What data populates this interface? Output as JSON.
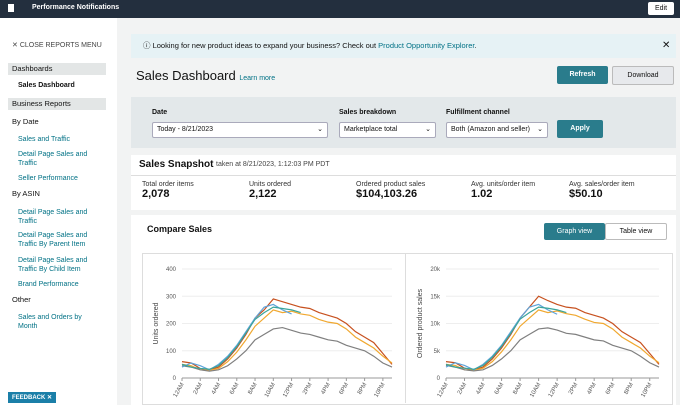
{
  "top_bar": {
    "title": "Performance Notifications",
    "edit": "Edit"
  },
  "sidebar": {
    "close": "CLOSE REPORTS MENU",
    "items": [
      "Dashboards",
      "Sales Dashboard",
      "Business Reports",
      "By Date",
      "Sales and Traffic",
      "Detail Page Sales and Traffic",
      "Seller Performance",
      "By ASIN",
      "Detail Page Sales and Traffic",
      "Detail Page Sales and Traffic By Parent Item",
      "Detail Page Sales and Traffic By Child Item",
      "Brand Performance",
      "Other",
      "Sales and Orders by Month"
    ],
    "feedback": "FEEDBACK"
  },
  "banner": {
    "text": "Looking for new product ideas to expand your business? Check out",
    "link": "Product Opportunity Explorer",
    "end": "."
  },
  "header": {
    "title": "Sales Dashboard",
    "learn_more": "Learn more",
    "refresh": "Refresh",
    "download": "Download"
  },
  "filters": [
    {
      "label": "Date",
      "value": "Today - 8/21/2023"
    },
    {
      "label": "Sales breakdown",
      "value": "Marketplace total"
    },
    {
      "label": "Fulfillment channel",
      "value": "Both (Amazon and seller)"
    }
  ],
  "apply": "Apply",
  "snapshot": {
    "title": "Sales Snapshot",
    "taken": "taken at 8/21/2023, 1:12:03 PM PDT",
    "metrics": [
      {
        "label": "Total order items",
        "value": "2,078"
      },
      {
        "label": "Units ordered",
        "value": "2,122"
      },
      {
        "label": "Ordered product sales",
        "value": "$104,103.26"
      },
      {
        "label": "Avg. units/order item",
        "value": "1.02"
      },
      {
        "label": "Avg. sales/order item",
        "value": "$50.10"
      }
    ]
  },
  "compare": {
    "title": "Compare Sales",
    "graph_view": "Graph view",
    "table_view": "Table view"
  },
  "chart_data": [
    {
      "type": "line",
      "y_label": "Units ordered",
      "categories": [
        "12AM",
        null,
        "2AM",
        null,
        "4AM",
        null,
        "6AM",
        null,
        "8AM",
        null,
        "10AM",
        null,
        "12PM",
        null,
        "2PM",
        null,
        "4PM",
        null,
        "6PM",
        null,
        "8PM",
        null,
        "10PM",
        null
      ],
      "ylim": [
        0,
        400
      ],
      "yticks": [
        0,
        100,
        200,
        300,
        400
      ],
      "grid": true,
      "series": [
        {
          "color": "#c7511f",
          "values": [
            60,
            55,
            35,
            30,
            40,
            70,
            110,
            160,
            220,
            250,
            290,
            280,
            270,
            260,
            255,
            240,
            230,
            220,
            200,
            170,
            150,
            130,
            90,
            50
          ]
        },
        {
          "color": "#f0a830",
          "values": [
            50,
            45,
            30,
            28,
            35,
            60,
            95,
            140,
            190,
            220,
            250,
            240,
            245,
            235,
            230,
            215,
            205,
            200,
            180,
            150,
            130,
            110,
            80,
            55
          ]
        },
        {
          "color": "#7f7f7f",
          "values": [
            45,
            40,
            30,
            25,
            30,
            45,
            70,
            100,
            140,
            160,
            180,
            185,
            175,
            165,
            160,
            150,
            140,
            135,
            120,
            110,
            100,
            80,
            55,
            40
          ]
        },
        {
          "color": "#5ea3d9",
          "values": [
            40,
            55,
            45,
            30,
            50,
            80,
            120,
            170,
            220,
            260,
            270,
            250,
            235,
            null,
            null,
            null,
            null,
            null,
            null,
            null,
            null,
            null,
            null,
            null
          ]
        },
        {
          "color": "#3aa59a",
          "values": [
            50,
            40,
            35,
            32,
            45,
            75,
            115,
            165,
            215,
            240,
            260,
            255,
            250,
            240,
            null,
            null,
            null,
            null,
            null,
            null,
            null,
            null,
            null,
            null
          ]
        }
      ]
    },
    {
      "type": "line",
      "y_label": "Ordered product sales",
      "categories": [
        "12AM",
        null,
        "2AM",
        null,
        "4AM",
        null,
        "6AM",
        null,
        "8AM",
        null,
        "10AM",
        null,
        "12PM",
        null,
        "2PM",
        null,
        "4PM",
        null,
        "6PM",
        null,
        "8PM",
        null,
        "10PM",
        null
      ],
      "ylim": [
        0,
        20000
      ],
      "yticks": [
        0,
        {
          "value": 5000,
          "label": "5k"
        },
        {
          "value": 10000,
          "label": "10k"
        },
        {
          "value": 15000,
          "label": "15k"
        },
        {
          "value": 20000,
          "label": "20k"
        }
      ],
      "grid": true,
      "series": [
        {
          "color": "#c7511f",
          "values": [
            3000,
            2800,
            1800,
            1500,
            2000,
            3500,
            5500,
            8000,
            11000,
            13000,
            15000,
            14200,
            13500,
            13000,
            12800,
            12000,
            11500,
            11000,
            10000,
            8500,
            7500,
            6500,
            4500,
            2500
          ]
        },
        {
          "color": "#f0a830",
          "values": [
            2500,
            2300,
            1500,
            1400,
            1800,
            3000,
            4800,
            7000,
            9500,
            11000,
            12500,
            12000,
            12300,
            11800,
            11500,
            10800,
            10200,
            10000,
            9000,
            7500,
            6500,
            5500,
            4000,
            2800
          ]
        },
        {
          "color": "#7f7f7f",
          "values": [
            2300,
            2000,
            1500,
            1300,
            1500,
            2300,
            3500,
            5000,
            7000,
            8000,
            9000,
            9200,
            8800,
            8200,
            8000,
            7500,
            7000,
            6800,
            6000,
            5500,
            5000,
            4000,
            2800,
            2000
          ]
        },
        {
          "color": "#5ea3d9",
          "values": [
            2000,
            2800,
            2300,
            1500,
            2500,
            4000,
            6000,
            8500,
            11000,
            13000,
            13500,
            12500,
            11700,
            null,
            null,
            null,
            null,
            null,
            null,
            null,
            null,
            null,
            null,
            null
          ]
        },
        {
          "color": "#3aa59a",
          "values": [
            2500,
            2000,
            1800,
            1600,
            2300,
            3800,
            5800,
            8200,
            10800,
            12000,
            13000,
            12800,
            12500,
            12000,
            null,
            null,
            null,
            null,
            null,
            null,
            null,
            null,
            null,
            null
          ]
        }
      ]
    }
  ]
}
